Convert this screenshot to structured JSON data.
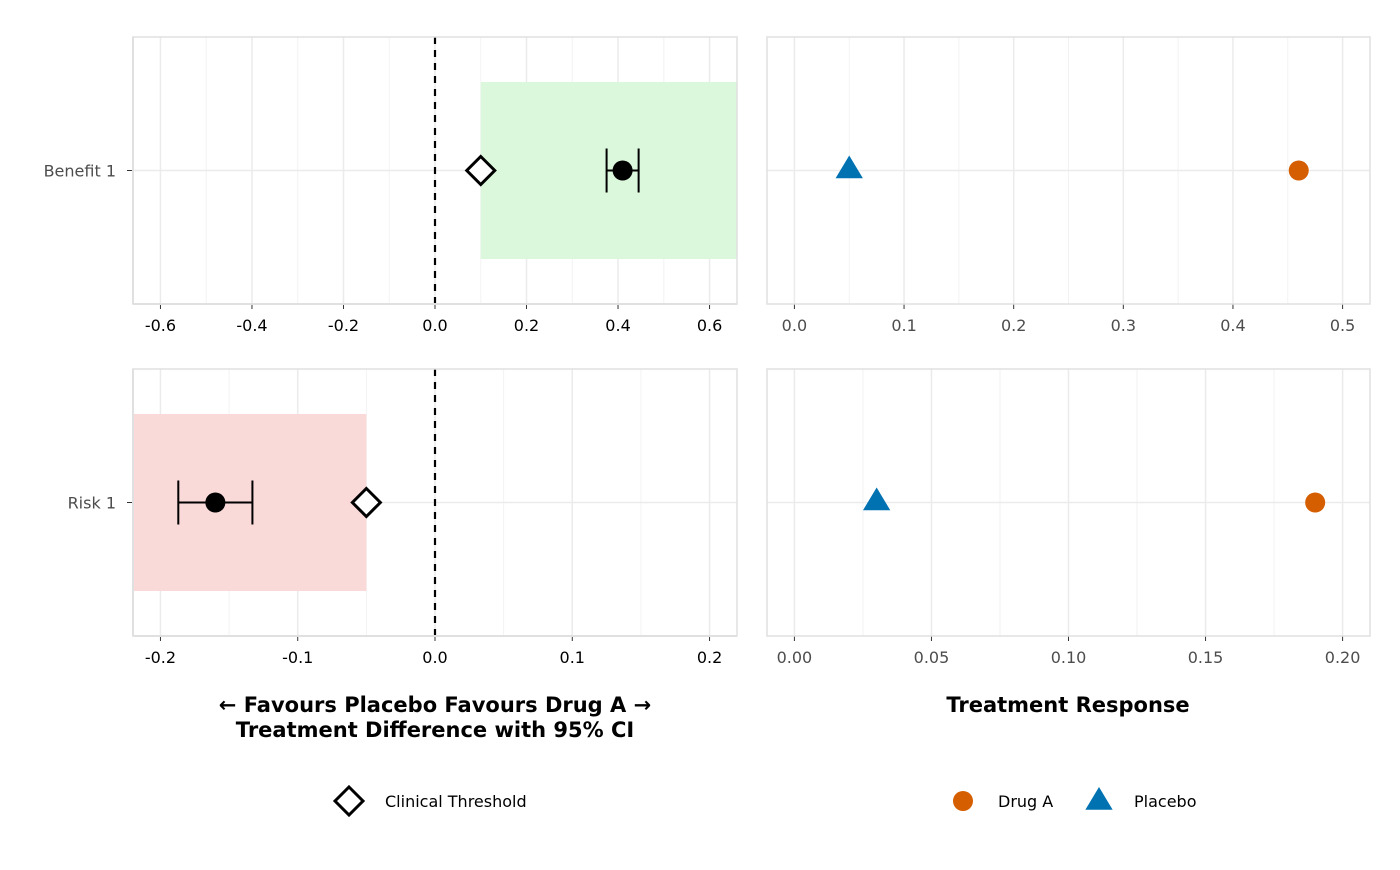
{
  "chart_data": [
    {
      "type": "scatter",
      "panel": "forest",
      "row_label": "Benefit 1",
      "xlim": [
        -0.66,
        0.66
      ],
      "ticks": [
        "-0.6",
        "-0.4",
        "-0.2",
        "0.0",
        "0.2",
        "0.4",
        "0.6"
      ],
      "tick_values": [
        -0.6,
        -0.4,
        -0.2,
        0.0,
        0.2,
        0.4,
        0.6
      ],
      "estimate": 0.41,
      "ci": [
        0.375,
        0.445
      ],
      "threshold": 0.1,
      "region": [
        0.1,
        0.66
      ],
      "region_color": "#dcf8dc",
      "reference_line": 0.0,
      "grid": true
    },
    {
      "type": "scatter",
      "panel": "response",
      "row_label": "Benefit 1",
      "xlim": [
        -0.025,
        0.525
      ],
      "ticks": [
        "0.0",
        "0.1",
        "0.2",
        "0.3",
        "0.4",
        "0.5"
      ],
      "tick_values": [
        0.0,
        0.1,
        0.2,
        0.3,
        0.4,
        0.5
      ],
      "series": [
        {
          "name": "Drug A",
          "x": 0.46
        },
        {
          "name": "Placebo",
          "x": 0.05
        }
      ],
      "grid": true
    },
    {
      "type": "scatter",
      "panel": "forest",
      "row_label": "Risk 1",
      "xlim": [
        -0.22,
        0.22
      ],
      "ticks": [
        "-0.2",
        "-0.1",
        "0.0",
        "0.1",
        "0.2"
      ],
      "tick_values": [
        -0.2,
        -0.1,
        0.0,
        0.1,
        0.2
      ],
      "estimate": -0.16,
      "ci": [
        -0.187,
        -0.133
      ],
      "threshold": -0.05,
      "region": [
        -0.22,
        -0.05
      ],
      "region_color": "#fad9d9",
      "reference_line": 0.0,
      "grid": true
    },
    {
      "type": "scatter",
      "panel": "response",
      "row_label": "Risk 1",
      "xlim": [
        -0.01,
        0.21
      ],
      "ticks": [
        "0.00",
        "0.05",
        "0.10",
        "0.15",
        "0.20"
      ],
      "tick_values": [
        0.0,
        0.05,
        0.1,
        0.15,
        0.2
      ],
      "series": [
        {
          "name": "Drug A",
          "x": 0.19
        },
        {
          "name": "Placebo",
          "x": 0.03
        }
      ],
      "grid": true
    }
  ],
  "left_axis_title_line1": "← Favours Placebo  Favours Drug A →",
  "left_axis_title_line2": "Treatment Difference with 95% CI",
  "right_axis_title": "Treatment Response",
  "legend_left": [
    {
      "label": "Clinical Threshold",
      "shape": "diamond-open"
    }
  ],
  "legend_right": [
    {
      "label": "Drug A",
      "shape": "circle",
      "color": "#d55e00"
    },
    {
      "label": "Placebo",
      "shape": "triangle",
      "color": "#0072b2"
    }
  ],
  "colors": {
    "drug_a": "#d55e00",
    "placebo": "#0072b2",
    "estimate": "#000000",
    "grid": "#ebebeb",
    "panel_border": "#e0e0e0"
  }
}
